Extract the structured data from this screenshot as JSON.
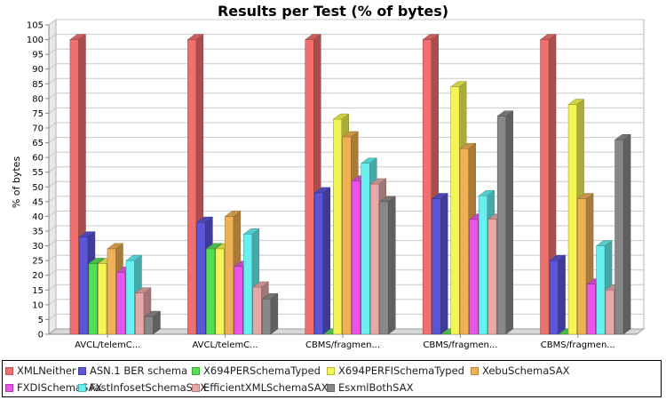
{
  "chart_data": {
    "type": "bar",
    "title": "Results per Test (% of bytes)",
    "xlabel": "",
    "ylabel": "% of bytes",
    "ylim": [
      0,
      105
    ],
    "ytick_step": 5,
    "grid": true,
    "legend_position": "bottom",
    "categories": [
      "AVCL/telemC...",
      "AVCL/telemC...",
      "CBMS/fragmen...",
      "CBMS/fragmen...",
      "CBMS/fragmen..."
    ],
    "series": [
      {
        "name": "XMLNeither",
        "color": "#f07070",
        "values": [
          100,
          100,
          100,
          100,
          100
        ]
      },
      {
        "name": "ASN.1 BER schema",
        "color": "#5b55d8",
        "values": [
          33,
          38,
          48,
          46,
          25
        ]
      },
      {
        "name": "X694PERSchemaTyped",
        "color": "#55dd55",
        "values": [
          24,
          29,
          0,
          0,
          0
        ]
      },
      {
        "name": "X694PERFISchemaTyped",
        "color": "#f4f455",
        "values": [
          24,
          29,
          73,
          84,
          78
        ]
      },
      {
        "name": "XebuSchemaSAX",
        "color": "#f0b055",
        "values": [
          29,
          40,
          67,
          63,
          46
        ]
      },
      {
        "name": "FXDISchemaSAX",
        "color": "#e855e8",
        "values": [
          21,
          23,
          52,
          39,
          17
        ]
      },
      {
        "name": "FastInfosetSchemaSAX",
        "color": "#66f0f0",
        "values": [
          25,
          34,
          58,
          47,
          30
        ]
      },
      {
        "name": "EfficientXMLSchemaSAX",
        "color": "#e8a8a8",
        "values": [
          14,
          16,
          51,
          39,
          15
        ]
      },
      {
        "name": "EsxmlBothSAX",
        "color": "#888888",
        "values": [
          6,
          12,
          45,
          74,
          66
        ]
      }
    ]
  }
}
